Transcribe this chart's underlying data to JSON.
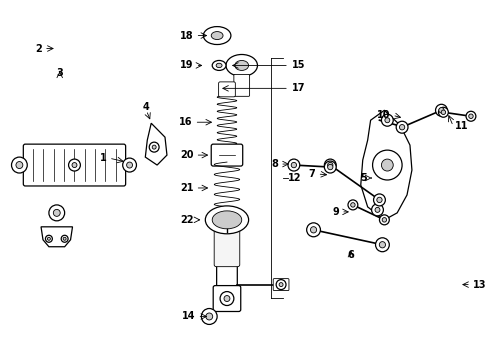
{
  "bg_color": "#ffffff",
  "fig_width": 4.89,
  "fig_height": 3.6,
  "dpi": 100,
  "xlim": [
    0,
    489
  ],
  "ylim": [
    0,
    360
  ]
}
